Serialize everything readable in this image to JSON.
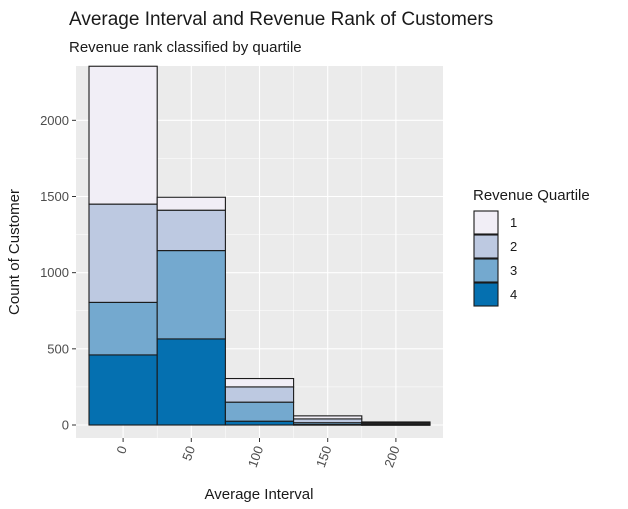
{
  "chart_data": {
    "type": "bar",
    "stacked": true,
    "title": "Average Interval and Revenue Rank of Customers",
    "subtitle": "Revenue rank classified by quartile",
    "xlabel": "Average Interval",
    "ylabel": "Count of Customer",
    "x_bin_centers": [
      0,
      50,
      100,
      150,
      200
    ],
    "bin_width": 50,
    "x_ticks": [
      "0",
      "50",
      "100",
      "150",
      "200"
    ],
    "x_range": [
      -25,
      225
    ],
    "y_ticks": [
      "0",
      "500",
      "1000",
      "1500",
      "2000"
    ],
    "y_range": [
      0,
      2350
    ],
    "series": [
      {
        "name": "4",
        "values": [
          460,
          565,
          25,
          3,
          2
        ],
        "color": "#0570b0"
      },
      {
        "name": "3",
        "values": [
          345,
          580,
          125,
          12,
          4
        ],
        "color": "#74a9cf"
      },
      {
        "name": "2",
        "values": [
          645,
          265,
          100,
          25,
          8
        ],
        "color": "#bdc9e1"
      },
      {
        "name": "1",
        "values": [
          905,
          85,
          55,
          20,
          6
        ],
        "color": "#f1eef6"
      }
    ],
    "legend": {
      "title": "Revenue Quartile",
      "position": "right",
      "items": [
        {
          "label": "1",
          "color": "#f1eef6"
        },
        {
          "label": "2",
          "color": "#bdc9e1"
        },
        {
          "label": "3",
          "color": "#74a9cf"
        },
        {
          "label": "4",
          "color": "#0570b0"
        }
      ]
    },
    "grid": true,
    "panel_background": "#ebebeb",
    "grid_color": "#ffffff",
    "bar_outline": "#1a1a1a"
  }
}
